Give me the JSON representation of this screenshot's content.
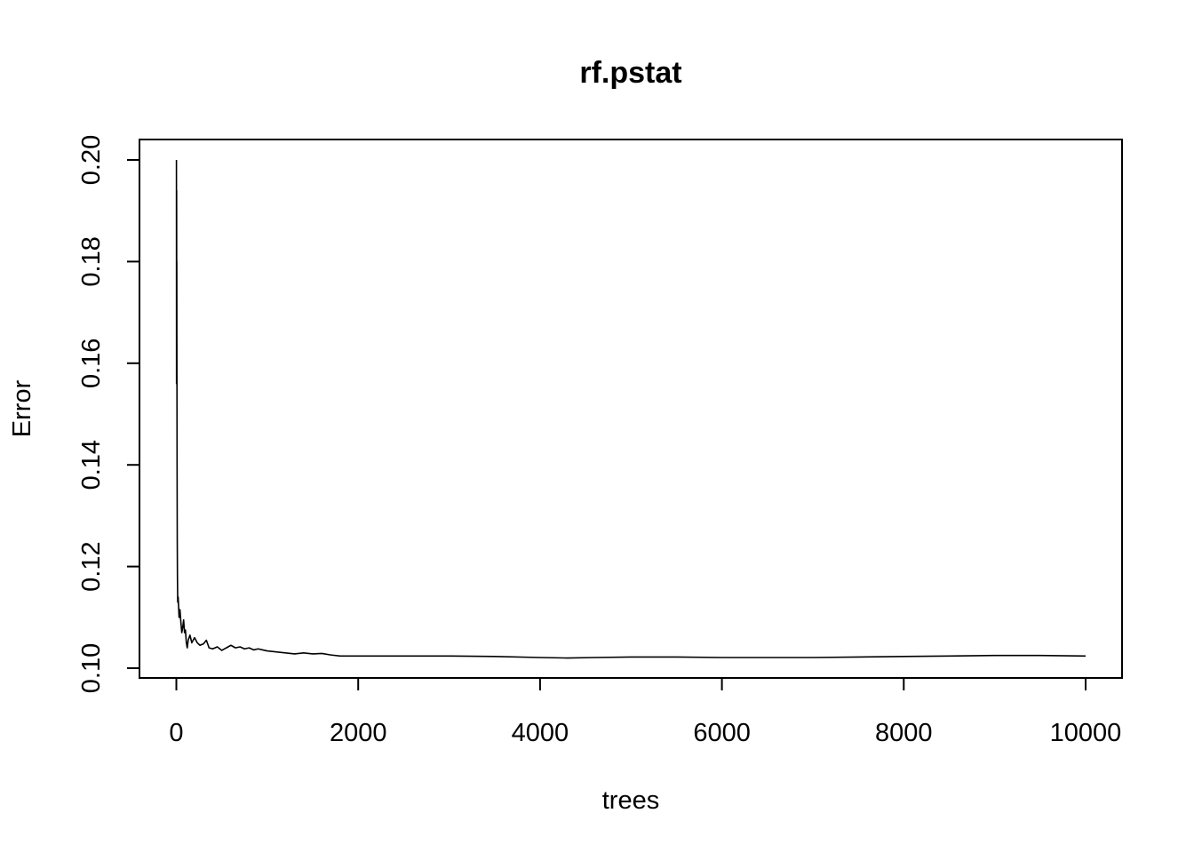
{
  "chart_data": {
    "type": "line",
    "title": "rf.pstat",
    "xlabel": "trees",
    "ylabel": "Error",
    "xlim": [
      0,
      10000
    ],
    "ylim": [
      0.1,
      0.2
    ],
    "x_ticks": [
      0,
      2000,
      4000,
      6000,
      8000,
      10000
    ],
    "x_tick_labels": [
      "0",
      "2000",
      "4000",
      "6000",
      "8000",
      "10000"
    ],
    "y_ticks": [
      0.1,
      0.12,
      0.14,
      0.16,
      0.18,
      0.2
    ],
    "y_tick_labels": [
      "0.10",
      "0.12",
      "0.14",
      "0.16",
      "0.18",
      "0.20"
    ],
    "grid": false,
    "legend": "none",
    "series": [
      {
        "color": "#000000",
        "x": [
          1,
          2,
          3,
          4,
          5,
          6,
          8,
          10,
          12,
          15,
          20,
          25,
          30,
          40,
          50,
          60,
          70,
          80,
          90,
          100,
          110,
          120,
          130,
          150,
          170,
          200,
          230,
          260,
          300,
          330,
          360,
          400,
          450,
          500,
          550,
          600,
          650,
          700,
          750,
          800,
          850,
          900,
          950,
          1000,
          1100,
          1200,
          1300,
          1400,
          1500,
          1600,
          1700,
          1800,
          2000,
          2500,
          3000,
          3500,
          4000,
          4300,
          4600,
          5000,
          5500,
          6000,
          6500,
          7000,
          7500,
          8000,
          8500,
          9000,
          9500,
          10000
        ],
        "y": [
          0.2,
          0.156,
          0.194,
          0.172,
          0.18,
          0.165,
          0.14,
          0.125,
          0.118,
          0.113,
          0.114,
          0.112,
          0.11,
          0.1115,
          0.109,
          0.107,
          0.108,
          0.1095,
          0.107,
          0.1075,
          0.105,
          0.104,
          0.1055,
          0.1065,
          0.105,
          0.106,
          0.105,
          0.1045,
          0.1048,
          0.1055,
          0.104,
          0.1038,
          0.1042,
          0.1035,
          0.104,
          0.1045,
          0.104,
          0.1042,
          0.1038,
          0.104,
          0.1036,
          0.1038,
          0.1036,
          0.1034,
          0.1032,
          0.103,
          0.1028,
          0.103,
          0.1028,
          0.1029,
          0.1026,
          0.1024,
          0.1024,
          0.1024,
          0.1024,
          0.1023,
          0.1021,
          0.102,
          0.1021,
          0.1022,
          0.1022,
          0.1021,
          0.1021,
          0.1021,
          0.1022,
          0.1023,
          0.1024,
          0.1025,
          0.1025,
          0.1024
        ]
      }
    ]
  }
}
